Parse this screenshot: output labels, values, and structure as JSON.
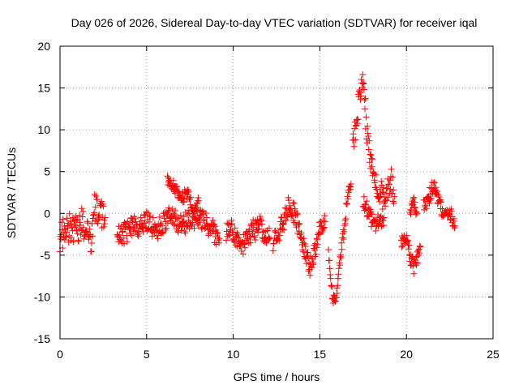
{
  "chart_data": {
    "type": "scatter",
    "title": "Day 026 of 2026, Sidereal Day-to-day VTEC variation (SDTVAR) for receiver iqal",
    "xlabel": "GPS time / hours",
    "ylabel": "SDTVAR / TECUs",
    "xlim": [
      0,
      25
    ],
    "ylim": [
      -15,
      20
    ],
    "xticks": [
      "0",
      "5",
      "10",
      "15",
      "20",
      "25"
    ],
    "yticks": [
      "20",
      "15",
      "10",
      "5",
      "0",
      "-5",
      "-10",
      "-15"
    ],
    "grid": true,
    "marker": "plus",
    "color": "#ff0000",
    "series": [
      {
        "name": "SDTVAR",
        "segments": [
          {
            "points": [
              [
                0.0,
                -3.0
              ],
              [
                0.3,
                -2.0
              ],
              [
                0.6,
                -1.5
              ],
              [
                1.0,
                -2.0
              ],
              [
                1.3,
                -1.0
              ],
              [
                1.6,
                -2.5
              ],
              [
                1.8,
                -3.5
              ],
              [
                2.0,
                0.5
              ],
              [
                2.3,
                0.0
              ],
              [
                2.6,
                -0.5
              ]
            ],
            "spread": 1.8
          },
          {
            "points": [
              [
                3.3,
                -2.0
              ],
              [
                3.6,
                -2.5
              ],
              [
                4.0,
                -2.0
              ],
              [
                4.3,
                -1.5
              ],
              [
                4.7,
                -1.5
              ],
              [
                5.0,
                -1.0
              ],
              [
                5.3,
                -1.5
              ],
              [
                5.6,
                -2.0
              ],
              [
                6.0,
                -1.0
              ],
              [
                6.3,
                0.0
              ],
              [
                6.6,
                -0.5
              ],
              [
                7.0,
                -1.5
              ],
              [
                7.3,
                -1.0
              ],
              [
                7.6,
                -0.5
              ],
              [
                8.0,
                -0.5
              ],
              [
                8.3,
                -1.0
              ],
              [
                8.6,
                -1.5
              ],
              [
                8.8,
                -2.0
              ],
              [
                9.0,
                -2.5
              ],
              [
                9.2,
                -3.0
              ]
            ],
            "spread": 1.3
          },
          {
            "points": [
              [
                6.2,
                4.0
              ],
              [
                6.5,
                3.5
              ],
              [
                6.8,
                2.5
              ],
              [
                7.1,
                2.0
              ],
              [
                7.4,
                2.5
              ],
              [
                7.7,
                0.0
              ],
              [
                8.0,
                1.5
              ]
            ],
            "spread": 0.7
          },
          {
            "points": [
              [
                9.6,
                -2.5
              ],
              [
                9.9,
                -2.0
              ],
              [
                10.2,
                -3.0
              ],
              [
                10.5,
                -4.0
              ],
              [
                10.8,
                -2.5
              ],
              [
                11.2,
                -2.0
              ],
              [
                11.5,
                -1.5
              ],
              [
                11.8,
                -2.5
              ],
              [
                12.1,
                -3.0
              ]
            ],
            "spread": 1.3
          },
          {
            "points": [
              [
                12.3,
                -3.5
              ],
              [
                12.6,
                -2.5
              ],
              [
                12.9,
                -1.0
              ],
              [
                13.2,
                1.0
              ],
              [
                13.5,
                0.0
              ],
              [
                13.8,
                -2.0
              ],
              [
                14.1,
                -4.0
              ],
              [
                14.4,
                -6.5
              ],
              [
                14.7,
                -4.5
              ],
              [
                15.0,
                -2.0
              ],
              [
                15.3,
                -1.0
              ]
            ],
            "spread": 1.2
          },
          {
            "points": [
              [
                15.5,
                -4.0
              ],
              [
                15.6,
                -8.0
              ],
              [
                15.8,
                -10.5
              ],
              [
                16.0,
                -9.5
              ],
              [
                16.2,
                -5.0
              ],
              [
                16.4,
                -2.0
              ],
              [
                16.6,
                2.0
              ],
              [
                16.8,
                3.5
              ]
            ],
            "spread": 0.8
          },
          {
            "points": [
              [
                16.9,
                8.0
              ],
              [
                17.1,
                11.0
              ],
              [
                17.3,
                14.0
              ],
              [
                17.5,
                16.0
              ],
              [
                17.7,
                10.0
              ],
              [
                17.9,
                7.0
              ],
              [
                18.1,
                5.5
              ],
              [
                18.3,
                3.5
              ],
              [
                18.5,
                2.5
              ],
              [
                18.7,
                1.5
              ],
              [
                18.9,
                2.5
              ],
              [
                19.1,
                4.0
              ],
              [
                19.3,
                2.0
              ]
            ],
            "spread": 1.6
          },
          {
            "points": [
              [
                17.5,
                1.5
              ],
              [
                17.8,
                0.0
              ],
              [
                18.1,
                -1.5
              ],
              [
                18.4,
                -1.0
              ],
              [
                18.7,
                -0.5
              ]
            ],
            "spread": 1.0
          },
          {
            "points": [
              [
                19.7,
                -3.5
              ],
              [
                20.0,
                -2.5
              ],
              [
                20.2,
                -5.0
              ],
              [
                20.4,
                -6.5
              ],
              [
                20.6,
                -5.5
              ],
              [
                20.8,
                -4.0
              ]
            ],
            "spread": 1.0
          },
          {
            "points": [
              [
                20.2,
                0.0
              ],
              [
                20.4,
                1.5
              ],
              [
                20.6,
                0.0
              ]
            ],
            "spread": 0.6
          },
          {
            "points": [
              [
                21.0,
                1.0
              ],
              [
                21.3,
                2.0
              ],
              [
                21.6,
                3.5
              ],
              [
                21.9,
                1.0
              ],
              [
                22.2,
                -0.5
              ],
              [
                22.5,
                0.0
              ],
              [
                22.8,
                -1.5
              ]
            ],
            "spread": 1.0
          }
        ]
      }
    ]
  }
}
